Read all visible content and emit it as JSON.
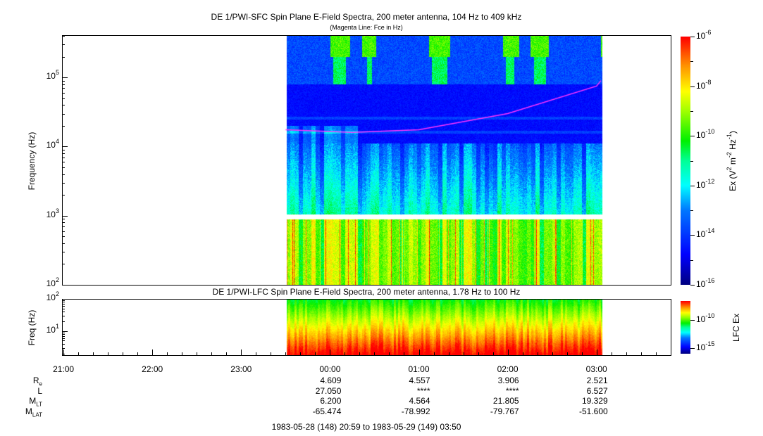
{
  "chart_data": [
    {
      "type": "heatmap",
      "title": "DE 1/PWI-SFC  Spin Plane E-Field Spectra, 200 meter antenna, 104 Hz to 409 kHz",
      "subtitle": "(Magenta Line: Fce in Hz)",
      "ylabel": "Frequency (Hz)",
      "yscale": "log",
      "ylim": [
        100,
        409000
      ],
      "yticks": [
        {
          "base": "10",
          "exp": "2"
        },
        {
          "base": "10",
          "exp": "3"
        },
        {
          "base": "10",
          "exp": "4"
        },
        {
          "base": "10",
          "exp": "5"
        }
      ],
      "data_time_range": [
        "23:31",
        "03:04"
      ],
      "colorbar": {
        "label": "Ex (V",
        "label_sup1": "2",
        "label_mid": " m",
        "label_sup2": "-2",
        "label_mid2": " Hz",
        "label_sup3": "-1",
        "label_end": ")",
        "range": [
          1e-16,
          1e-06
        ],
        "ticks": [
          {
            "base": "10",
            "exp": "-6"
          },
          {
            "base": "10",
            "exp": "-8"
          },
          {
            "base": "10",
            "exp": "-10"
          },
          {
            "base": "10",
            "exp": "-12"
          },
          {
            "base": "10",
            "exp": "-14"
          },
          {
            "base": "10",
            "exp": "-16"
          }
        ]
      },
      "fce_line": {
        "color": "#ff33ff",
        "times_h": [
          23.5,
          24.25,
          25,
          26,
          27,
          27.05
        ],
        "freq_hz": [
          17500,
          16000,
          17500,
          30000,
          75000,
          90000
        ]
      }
    },
    {
      "type": "heatmap",
      "title": "DE 1/PWI-LFC  Spin Plane E-Field Spectra, 200 meter antenna, 1.78 Hz to 100 Hz",
      "ylabel": "Freq (Hz)",
      "yscale": "log",
      "ylim": [
        1.78,
        100
      ],
      "yticks": [
        {
          "base": "10",
          "exp": "1"
        },
        {
          "base": "10",
          "exp": "2"
        }
      ],
      "colorbar": {
        "label": "LFC Ex",
        "ticks": [
          {
            "base": "10",
            "exp": "-10"
          },
          {
            "base": "10",
            "exp": "-15"
          }
        ]
      }
    }
  ],
  "xaxis": {
    "ticks": [
      "21:00",
      "22:00",
      "23:00",
      "00:00",
      "01:00",
      "02:00",
      "03:00"
    ],
    "range": [
      "20:59",
      "03:50"
    ]
  },
  "ephemeris": {
    "rows": [
      {
        "label": "R",
        "sub": "e",
        "values": [
          "4.609",
          "4.557",
          "3.906",
          "2.521"
        ]
      },
      {
        "label": "L",
        "sub": "",
        "values": [
          "27.050",
          "****",
          "****",
          "6.527"
        ]
      },
      {
        "label": "M",
        "sub": "LT",
        "values": [
          "6.200",
          "4.564",
          "21.805",
          "19.329"
        ]
      },
      {
        "label": "M",
        "sub": "LAT",
        "values": [
          "-65.474",
          "-78.992",
          "-79.767",
          "-51.600"
        ]
      }
    ]
  },
  "footer": "1983-05-28 (148) 20:59 to 1983-05-29 (149) 03:50"
}
